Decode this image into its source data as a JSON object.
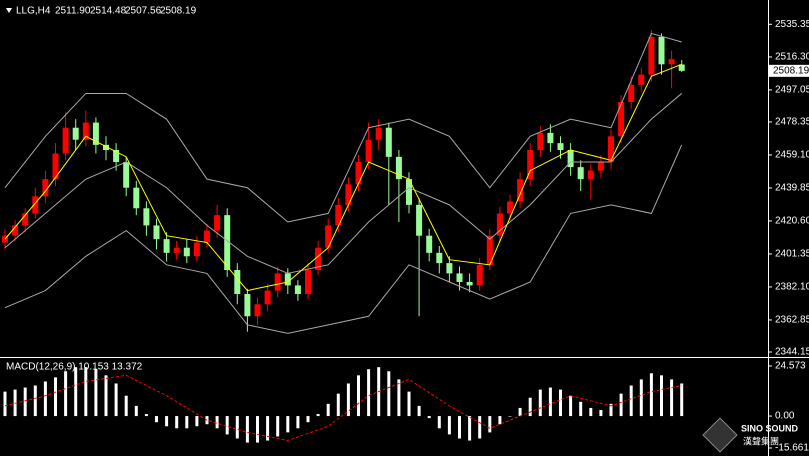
{
  "chart_data": {
    "type": "candlestick",
    "header": {
      "symbol": "LLG,H4",
      "values": [
        "2511.90",
        "2514.48",
        "2507.56",
        "2508.19"
      ]
    },
    "up_color": "#ff0000",
    "down_color": "#98fb98",
    "open": [
      2408,
      2412,
      2418,
      2425,
      2435,
      2445,
      2460,
      2475,
      2468,
      2478,
      2465,
      2462,
      2455,
      2440,
      2428,
      2418,
      2410,
      2402,
      2405,
      2400,
      2408,
      2415,
      2424,
      2392,
      2378,
      2365,
      2372,
      2380,
      2390,
      2383,
      2378,
      2392,
      2405,
      2418,
      2430,
      2442,
      2455,
      2468,
      2475,
      2458,
      2445,
      2430,
      2412,
      2402,
      2396,
      2390,
      2385,
      2383,
      2395,
      2412,
      2425,
      2432,
      2445,
      2462,
      2472,
      2466,
      2462,
      2452,
      2445,
      2450,
      2455,
      2470,
      2490,
      2500,
      2506,
      2528,
      2512,
      2511.9
    ],
    "high": [
      2416,
      2421,
      2428,
      2440,
      2450,
      2466,
      2484,
      2480,
      2485,
      2481,
      2470,
      2466,
      2458,
      2444,
      2432,
      2422,
      2414,
      2409,
      2410,
      2412,
      2419,
      2430,
      2428,
      2396,
      2381,
      2376,
      2384,
      2394,
      2393,
      2386,
      2396,
      2409,
      2422,
      2434,
      2446,
      2459,
      2478,
      2480,
      2478,
      2462,
      2449,
      2434,
      2416,
      2406,
      2400,
      2394,
      2390,
      2399,
      2416,
      2429,
      2436,
      2449,
      2466,
      2476,
      2477,
      2470,
      2466,
      2456,
      2454,
      2459,
      2474,
      2494,
      2505,
      2510,
      2532,
      2530,
      2520,
      2514.48
    ],
    "low": [
      2404,
      2409,
      2414,
      2422,
      2431,
      2441,
      2456,
      2462,
      2464,
      2460,
      2456,
      2450,
      2435,
      2424,
      2412,
      2404,
      2397,
      2398,
      2396,
      2397,
      2405,
      2411,
      2388,
      2372,
      2356,
      2360,
      2368,
      2376,
      2378,
      2374,
      2375,
      2389,
      2402,
      2414,
      2426,
      2438,
      2451,
      2462,
      2430,
      2420,
      2425,
      2365,
      2397,
      2390,
      2385,
      2380,
      2379,
      2380,
      2392,
      2408,
      2421,
      2428,
      2441,
      2458,
      2461,
      2457,
      2447,
      2438,
      2433,
      2446,
      2451,
      2466,
      2486,
      2496,
      2502,
      2506,
      2498,
      2507.56
    ],
    "close": [
      2412,
      2418,
      2425,
      2435,
      2445,
      2460,
      2475,
      2468,
      2478,
      2465,
      2462,
      2455,
      2440,
      2428,
      2418,
      2410,
      2402,
      2405,
      2400,
      2408,
      2415,
      2424,
      2392,
      2378,
      2365,
      2372,
      2380,
      2390,
      2383,
      2378,
      2392,
      2405,
      2418,
      2430,
      2442,
      2455,
      2468,
      2475,
      2458,
      2445,
      2430,
      2412,
      2402,
      2396,
      2390,
      2385,
      2383,
      2395,
      2412,
      2425,
      2432,
      2445,
      2462,
      2472,
      2466,
      2462,
      2452,
      2445,
      2450,
      2455,
      2470,
      2490,
      2500,
      2506,
      2528,
      2512,
      2515,
      2508.19
    ],
    "ylim": [
      2342.4,
      2546.6
    ],
    "yticks": [
      {
        "value": 2535.35,
        "label": "2535.35"
      },
      {
        "value": 2516.3,
        "label": "2516.30"
      },
      {
        "value": 2497.05,
        "label": "2497.05"
      },
      {
        "value": 2478.35,
        "label": "2478.35"
      },
      {
        "value": 2459.1,
        "label": "2459.10"
      },
      {
        "value": 2439.85,
        "label": "2439.85"
      },
      {
        "value": 2420.6,
        "label": "2420.60"
      },
      {
        "value": 2401.35,
        "label": "2401.35"
      },
      {
        "value": 2382.1,
        "label": "2382.10"
      },
      {
        "value": 2362.85,
        "label": "2362.85"
      },
      {
        "value": 2344.15,
        "label": "2344.15"
      }
    ],
    "indicator_x": [
      0,
      4,
      8,
      12,
      16,
      20,
      24,
      28,
      32,
      36,
      40,
      44,
      48,
      52,
      56,
      60,
      64,
      67
    ],
    "lines": [
      {
        "color": "#a9a9a9",
        "values": [
          2440,
          2470,
          2495,
          2495,
          2480,
          2445,
          2440,
          2420,
          2425,
          2475,
          2480,
          2470,
          2440,
          2470,
          2480,
          2475,
          2530,
          2525
        ]
      },
      {
        "color": "#a9a9a9",
        "values": [
          2405,
          2425,
          2445,
          2455,
          2440,
          2418,
          2400,
          2390,
          2395,
          2420,
          2440,
          2430,
          2410,
          2430,
          2455,
          2455,
          2480,
          2495
        ]
      },
      {
        "color": "#a9a9a9",
        "values": [
          2370,
          2380,
          2400,
          2415,
          2395,
          2390,
          2360,
          2355,
          2360,
          2365,
          2395,
          2385,
          2375,
          2385,
          2425,
          2430,
          2425,
          2465
        ]
      },
      {
        "color": "#ffff00",
        "values": [
          2410,
          2438,
          2470,
          2458,
          2412,
          2408,
          2380,
          2385,
          2405,
          2455,
          2445,
          2398,
          2395,
          2450,
          2462,
          2456,
          2505,
          2512
        ]
      }
    ],
    "macd": {
      "label": "MACD(12,26,9) 10.153 13.372",
      "bar_color": "#ffffff",
      "signal_color": "#ff0000",
      "histogram": [
        12,
        13,
        14,
        15,
        17,
        19,
        22,
        24,
        24,
        23,
        20,
        16,
        10,
        5,
        1,
        -3,
        -5,
        -6,
        -6,
        -5,
        -4,
        -6,
        -9,
        -11,
        -13,
        -13,
        -12,
        -10,
        -8,
        -6,
        -3,
        1,
        6,
        11,
        16,
        20,
        23,
        24,
        22,
        18,
        12,
        5,
        -1,
        -6,
        -9,
        -11,
        -12,
        -11,
        -8,
        -4,
        0,
        4,
        9,
        13,
        14,
        13,
        10,
        7,
        4,
        3,
        6,
        11,
        15,
        18,
        21,
        20,
        18,
        16
      ],
      "signal": [
        5,
        10,
        17,
        20,
        10,
        -2,
        -8,
        -12,
        -5,
        10,
        18,
        5,
        -6,
        2,
        10,
        5,
        12,
        15
      ],
      "ylim": [
        -19.1,
        27.52
      ],
      "yticks": [
        24.573,
        {
          "value": 0,
          "label": "0.00"
        },
        -15.661
      ]
    },
    "logo": {
      "name": "SINO SOUND",
      "sub": "漢聲集團"
    }
  }
}
